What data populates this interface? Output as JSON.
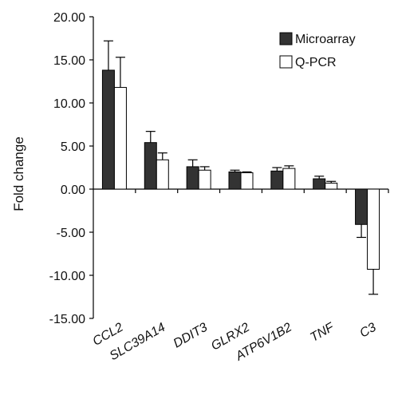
{
  "chart_data": {
    "type": "bar",
    "ylabel": "Fold change",
    "xlabel": "",
    "ylim": [
      -15,
      20
    ],
    "yticks": [
      "20.00",
      "15.00",
      "10.00",
      "5.00",
      "0.00",
      "-5.00",
      "-10.00",
      "-15.00"
    ],
    "ytick_values": [
      20,
      15,
      10,
      5,
      0,
      -5,
      -10,
      -15
    ],
    "categories": [
      "CCL2",
      "SLC39A14",
      "DDIT3",
      "GLRX2",
      "ATP6V1B2",
      "TNF",
      "C3"
    ],
    "series": [
      {
        "name": "Microarray",
        "color": "#333333",
        "values": [
          13.8,
          5.4,
          2.6,
          2.0,
          2.1,
          1.2,
          -4.1
        ],
        "errors": [
          3.4,
          1.3,
          0.8,
          0.2,
          0.4,
          0.3,
          1.5
        ]
      },
      {
        "name": "Q-PCR",
        "color": "#ffffff",
        "values": [
          11.8,
          3.4,
          2.2,
          1.9,
          2.4,
          0.7,
          -9.3
        ],
        "errors": [
          3.5,
          0.8,
          0.4,
          0.1,
          0.3,
          0.2,
          2.9
        ]
      }
    ],
    "legend_position": "top-right",
    "grid": false
  }
}
